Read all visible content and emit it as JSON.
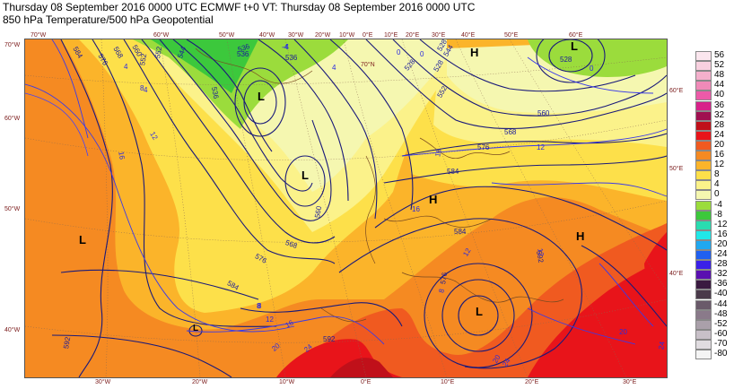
{
  "title": {
    "line1": "Thursday 08 September 2016 0000 UTC  ECMWF  t+0  VT: Thursday 08 September 2016 0000 UTC",
    "line2": "850 hPa Temperature/500 hPa Geopotential"
  },
  "top_axis": [
    "70°W",
    "60°W",
    "50°W",
    "40°W",
    "30°W",
    "20°W",
    "10°W",
    "0°E",
    "10°E",
    "20°E",
    "30°E",
    "40°E",
    "50°E",
    "60°E"
  ],
  "bottom_axis": [
    "30°W",
    "20°W",
    "10°W",
    "0°E",
    "10°E",
    "20°E",
    "30°E"
  ],
  "left_axis": [
    "70°W",
    "60°W",
    "50°W",
    "40°W"
  ],
  "right_axis": [
    "60°E",
    "50°E",
    "40°E"
  ],
  "inner_labels": [
    "70°N"
  ],
  "pressure_centers": [
    {
      "label": "L"
    },
    {
      "label": "L"
    },
    {
      "label": "L"
    },
    {
      "label": "L"
    },
    {
      "label": "L"
    },
    {
      "label": "L"
    },
    {
      "label": "H"
    },
    {
      "label": "H"
    },
    {
      "label": "H"
    }
  ],
  "geopotential_labels": [
    "584",
    "576",
    "568",
    "560",
    "552",
    "544",
    "536",
    "528",
    "536",
    "528",
    "544",
    "552",
    "536",
    "528",
    "536",
    "528",
    "560",
    "568",
    "576",
    "584",
    "592",
    "552",
    "560",
    "568",
    "576",
    "584",
    "592",
    "576",
    "584",
    "592"
  ],
  "temperature_labels": [
    "-4",
    "0",
    "4",
    "8",
    "12",
    "16",
    "20",
    "24",
    "16",
    "12",
    "8",
    "4",
    "0",
    "-4",
    "12",
    "16",
    "20",
    "24",
    "16",
    "12",
    "8",
    "20",
    "24",
    "12",
    "8",
    "4",
    "0"
  ],
  "legend": {
    "items": [
      {
        "value": "56",
        "color": "#fbe6ee"
      },
      {
        "value": "52",
        "color": "#f8d0df"
      },
      {
        "value": "48",
        "color": "#f4b0cc"
      },
      {
        "value": "44",
        "color": "#f08ab8"
      },
      {
        "value": "40",
        "color": "#ec5aa8"
      },
      {
        "value": "36",
        "color": "#d8218a"
      },
      {
        "value": "32",
        "color": "#a01050"
      },
      {
        "value": "28",
        "color": "#c0101a"
      },
      {
        "value": "24",
        "color": "#e8141a"
      },
      {
        "value": "20",
        "color": "#f05a20"
      },
      {
        "value": "16",
        "color": "#f58a22"
      },
      {
        "value": "12",
        "color": "#fbb42a"
      },
      {
        "value": "8",
        "color": "#fde04a"
      },
      {
        "value": "4",
        "color": "#fbf28a"
      },
      {
        "value": "0",
        "color": "#f5f7b0"
      },
      {
        "value": "-4",
        "color": "#9bdc3c"
      },
      {
        "value": "-8",
        "color": "#3cc83c"
      },
      {
        "value": "-12",
        "color": "#2adcb0"
      },
      {
        "value": "-16",
        "color": "#20e8e8"
      },
      {
        "value": "-20",
        "color": "#20a8f0"
      },
      {
        "value": "-24",
        "color": "#2060f0"
      },
      {
        "value": "-28",
        "color": "#3a20e8"
      },
      {
        "value": "-32",
        "color": "#5a10b0"
      },
      {
        "value": "-36",
        "color": "#3a1a40"
      },
      {
        "value": "-40",
        "color": "#4a3a4a"
      },
      {
        "value": "-44",
        "color": "#6a5a6a"
      },
      {
        "value": "-48",
        "color": "#8a7a8a"
      },
      {
        "value": "-52",
        "color": "#aaa0aa"
      },
      {
        "value": "-60",
        "color": "#c8c0c8"
      },
      {
        "value": "-70",
        "color": "#e0dce0"
      },
      {
        "value": "-80",
        "color": "#f4f4f4"
      }
    ]
  }
}
